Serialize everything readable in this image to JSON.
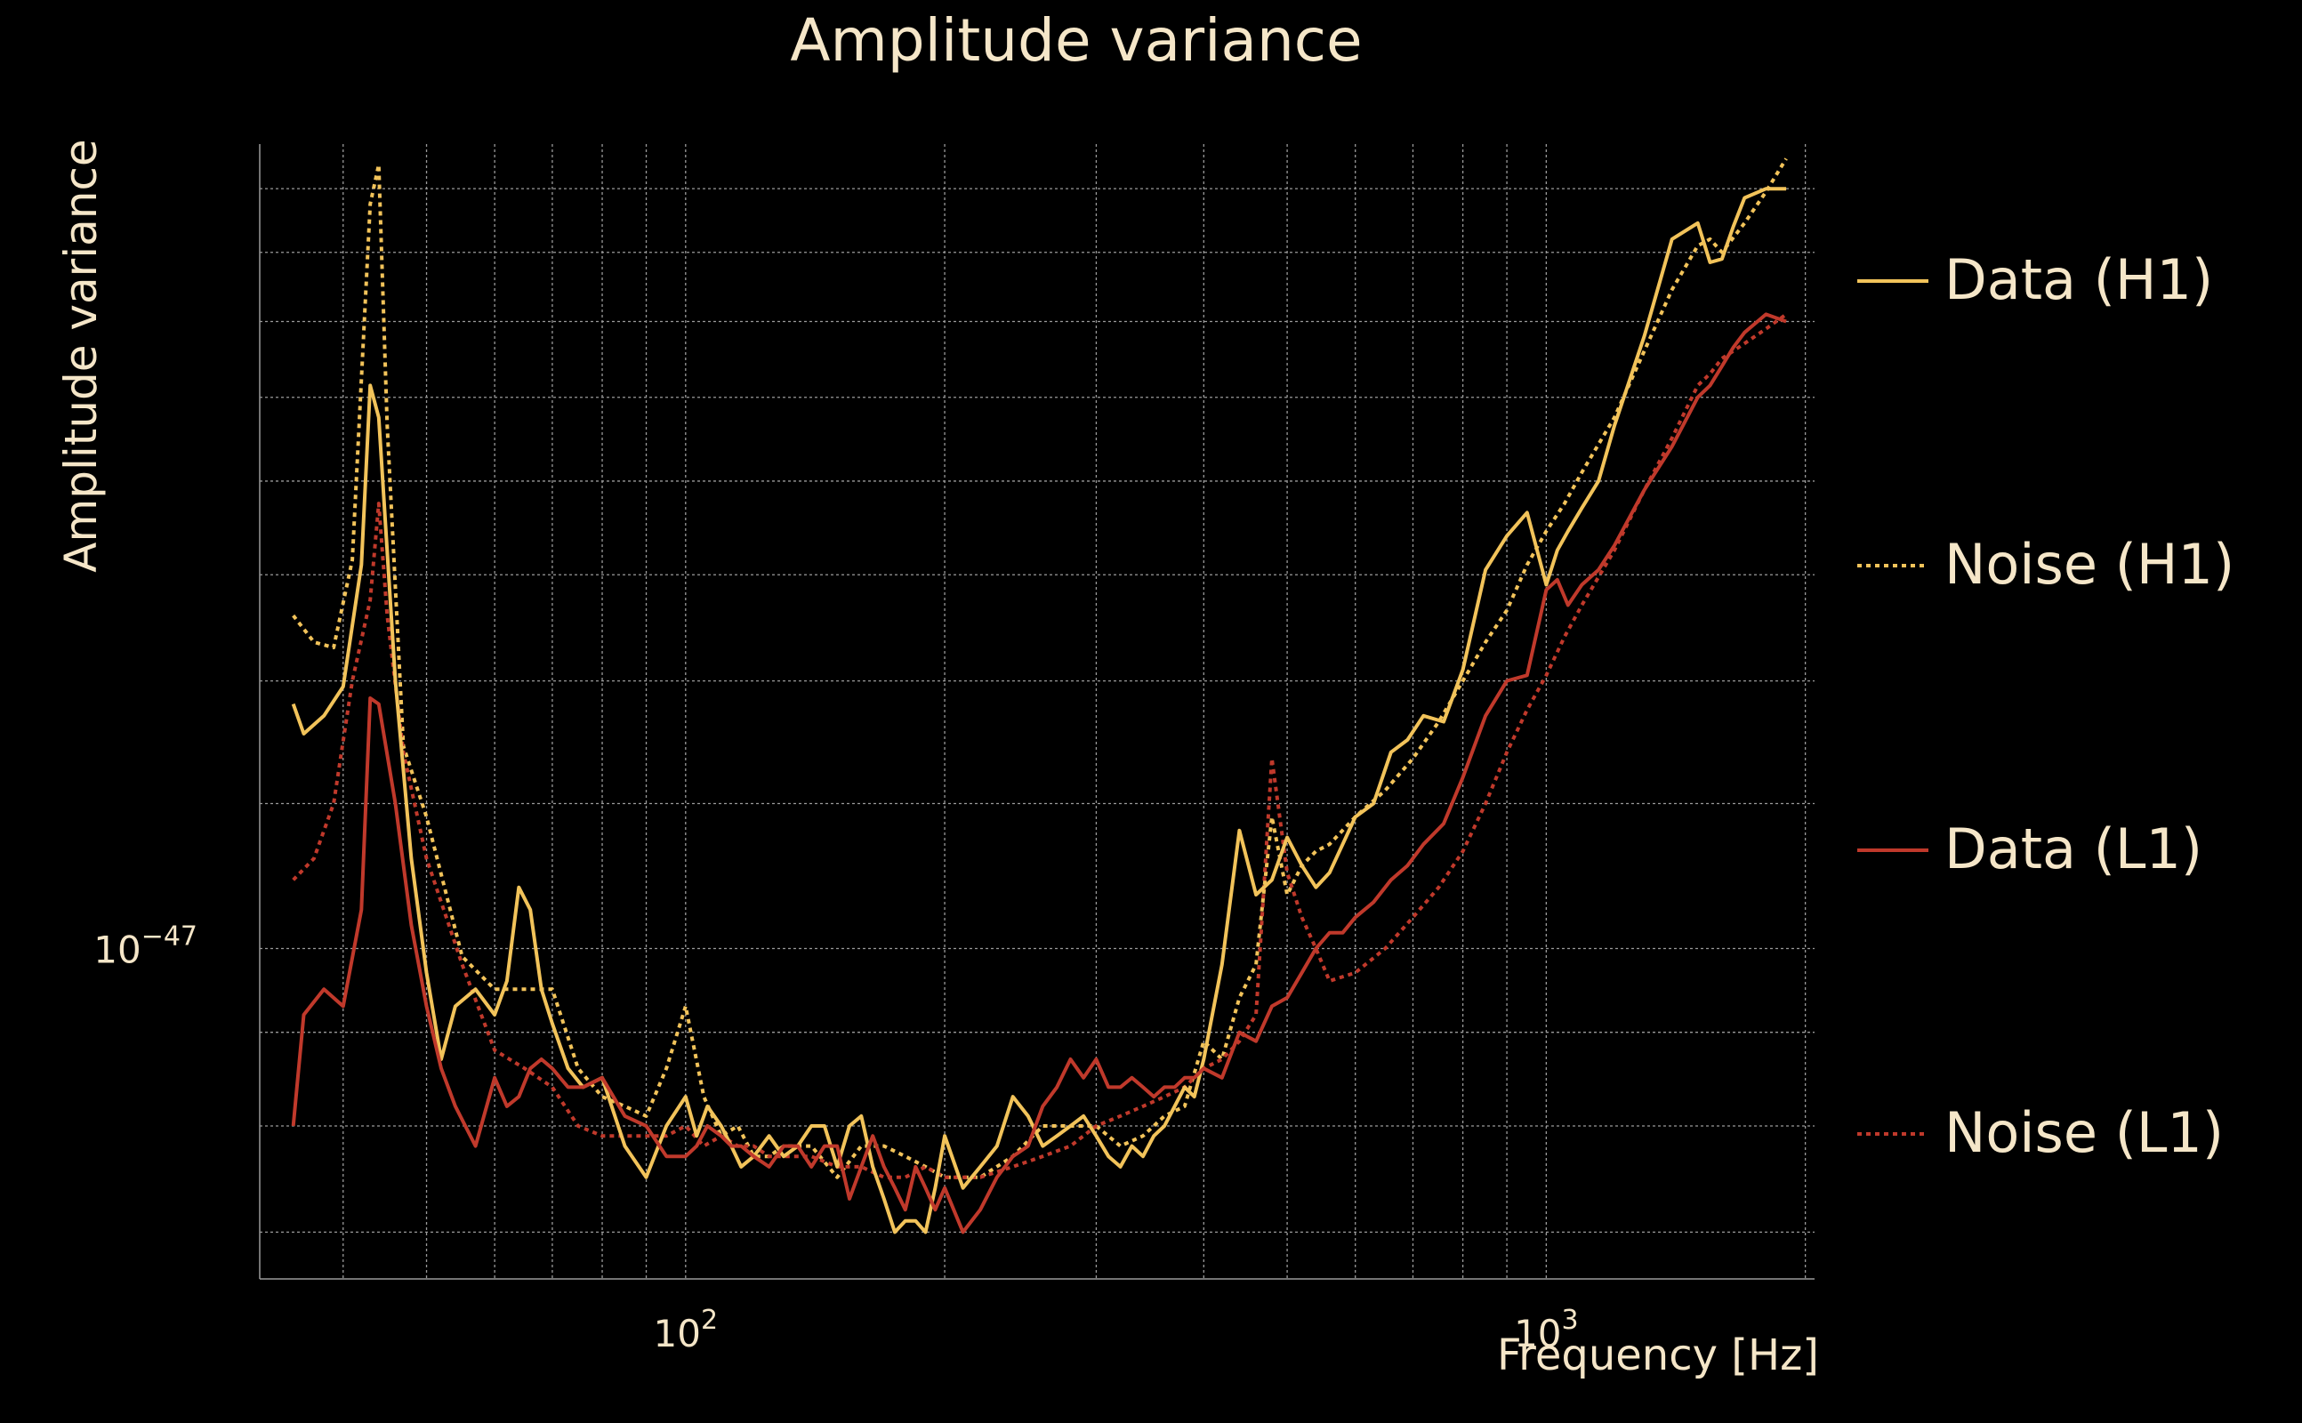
{
  "chart_data": {
    "type": "line",
    "title": "Amplitude variance",
    "xlabel": "Frequency [Hz]",
    "ylabel": "Amplitude variance",
    "xscale": "log",
    "yscale": "log",
    "xlim": [
      32,
      2050
    ],
    "ylim": [
      6.6e-48,
      2.75e-47
    ],
    "xticks": [
      {
        "value": 100,
        "label": "10",
        "exp": "2"
      },
      {
        "value": 1000,
        "label": "10",
        "exp": "3"
      }
    ],
    "yticks": [
      {
        "value": 1e-47,
        "label": "10",
        "exp": "−47"
      }
    ],
    "grid": true,
    "legend_position": "right",
    "colors": {
      "background": "#000000",
      "text": "#f5e6c8",
      "grid": "#9a9a9a",
      "h1": "#f2c35a",
      "l1": "#c0392b"
    },
    "series": [
      {
        "name": "Data (H1)",
        "color": "#f2c35a",
        "dash": "solid",
        "x": [
          35,
          36,
          38,
          40,
          42,
          43,
          44,
          46,
          48,
          50,
          52,
          54,
          57,
          60,
          62,
          64,
          66,
          68,
          70,
          73,
          76,
          80,
          85,
          90,
          95,
          100,
          103,
          106,
          110,
          113,
          116,
          120,
          125,
          130,
          135,
          140,
          145,
          150,
          155,
          160,
          165,
          170,
          175,
          180,
          185,
          190,
          195,
          200,
          210,
          220,
          230,
          240,
          250,
          260,
          270,
          280,
          290,
          300,
          310,
          320,
          330,
          340,
          350,
          360,
          370,
          380,
          390,
          400,
          420,
          440,
          460,
          480,
          500,
          520,
          540,
          560,
          580,
          600,
          630,
          660,
          690,
          720,
          760,
          800,
          850,
          900,
          950,
          1000,
          1030,
          1060,
          1100,
          1150,
          1200,
          1300,
          1400,
          1500,
          1550,
          1600,
          1650,
          1700,
          1800,
          1900
        ],
        "y": [
          1.36,
          1.31,
          1.34,
          1.39,
          1.62,
          2.03,
          1.95,
          1.4,
          1.12,
          0.97,
          0.87,
          0.93,
          0.95,
          0.92,
          0.96,
          1.08,
          1.05,
          0.95,
          0.91,
          0.86,
          0.84,
          0.85,
          0.78,
          0.75,
          0.8,
          0.83,
          0.79,
          0.82,
          0.8,
          0.78,
          0.76,
          0.77,
          0.79,
          0.77,
          0.78,
          0.8,
          0.8,
          0.76,
          0.8,
          0.81,
          0.76,
          0.73,
          0.7,
          0.71,
          0.71,
          0.7,
          0.74,
          0.79,
          0.74,
          0.76,
          0.78,
          0.83,
          0.81,
          0.78,
          0.79,
          0.8,
          0.81,
          0.79,
          0.77,
          0.76,
          0.78,
          0.77,
          0.79,
          0.8,
          0.82,
          0.84,
          0.83,
          0.87,
          0.98,
          1.16,
          1.07,
          1.09,
          1.15,
          1.11,
          1.08,
          1.1,
          1.14,
          1.18,
          1.2,
          1.28,
          1.3,
          1.34,
          1.33,
          1.42,
          1.61,
          1.68,
          1.73,
          1.58,
          1.65,
          1.69,
          1.74,
          1.8,
          1.93,
          2.16,
          2.44,
          2.49,
          2.37,
          2.38,
          2.48,
          2.57,
          2.6,
          2.6
        ]
      },
      {
        "name": "Noise (H1)",
        "color": "#f2c35a",
        "dash": "dotted",
        "x": [
          35,
          37,
          39,
          41,
          43,
          44,
          45,
          47,
          50,
          55,
          60,
          65,
          70,
          75,
          80,
          85,
          90,
          95,
          100,
          105,
          110,
          115,
          120,
          125,
          130,
          140,
          150,
          160,
          170,
          180,
          190,
          200,
          220,
          240,
          260,
          280,
          300,
          320,
          340,
          360,
          380,
          400,
          420,
          440,
          460,
          480,
          500,
          520,
          540,
          560,
          600,
          650,
          700,
          750,
          800,
          850,
          900,
          950,
          1000,
          1050,
          1100,
          1200,
          1300,
          1400,
          1500,
          1550,
          1600,
          1700,
          1800,
          1900
        ],
        "y": [
          1.52,
          1.47,
          1.46,
          1.63,
          2.55,
          2.68,
          1.93,
          1.29,
          1.18,
          0.99,
          0.95,
          0.95,
          0.95,
          0.86,
          0.83,
          0.82,
          0.81,
          0.86,
          0.93,
          0.83,
          0.79,
          0.8,
          0.77,
          0.77,
          0.78,
          0.78,
          0.75,
          0.78,
          0.78,
          0.77,
          0.76,
          0.75,
          0.75,
          0.77,
          0.8,
          0.8,
          0.8,
          0.78,
          0.79,
          0.81,
          0.82,
          0.89,
          0.87,
          0.94,
          0.98,
          1.18,
          1.07,
          1.11,
          1.13,
          1.14,
          1.18,
          1.22,
          1.27,
          1.33,
          1.4,
          1.47,
          1.53,
          1.62,
          1.69,
          1.75,
          1.82,
          1.95,
          2.12,
          2.29,
          2.42,
          2.44,
          2.4,
          2.49,
          2.59,
          2.7
        ]
      },
      {
        "name": "Data (L1)",
        "color": "#c0392b",
        "dash": "solid",
        "x": [
          35,
          36,
          38,
          40,
          42,
          43,
          44,
          46,
          48,
          50,
          52,
          54,
          57,
          60,
          62,
          64,
          66,
          68,
          70,
          73,
          76,
          80,
          85,
          90,
          95,
          100,
          103,
          106,
          110,
          113,
          116,
          120,
          125,
          130,
          135,
          140,
          145,
          150,
          155,
          160,
          165,
          170,
          175,
          180,
          185,
          190,
          195,
          200,
          210,
          220,
          230,
          240,
          250,
          260,
          270,
          280,
          290,
          300,
          310,
          320,
          330,
          340,
          350,
          360,
          370,
          380,
          390,
          400,
          420,
          440,
          460,
          480,
          500,
          520,
          540,
          560,
          580,
          600,
          630,
          660,
          690,
          720,
          760,
          800,
          850,
          900,
          950,
          1000,
          1030,
          1060,
          1100,
          1150,
          1200,
          1300,
          1400,
          1500,
          1550,
          1600,
          1650,
          1700,
          1800,
          1900
        ],
        "y": [
          0.8,
          0.92,
          0.95,
          0.93,
          1.05,
          1.37,
          1.36,
          1.2,
          1.03,
          0.93,
          0.86,
          0.82,
          0.78,
          0.85,
          0.82,
          0.83,
          0.86,
          0.87,
          0.86,
          0.84,
          0.84,
          0.85,
          0.81,
          0.8,
          0.77,
          0.77,
          0.78,
          0.8,
          0.79,
          0.78,
          0.78,
          0.77,
          0.76,
          0.78,
          0.78,
          0.76,
          0.78,
          0.78,
          0.73,
          0.76,
          0.79,
          0.76,
          0.74,
          0.72,
          0.76,
          0.74,
          0.72,
          0.74,
          0.7,
          0.72,
          0.75,
          0.77,
          0.78,
          0.82,
          0.84,
          0.87,
          0.85,
          0.87,
          0.84,
          0.84,
          0.85,
          0.84,
          0.83,
          0.84,
          0.84,
          0.85,
          0.85,
          0.86,
          0.85,
          0.9,
          0.89,
          0.93,
          0.94,
          0.97,
          1.0,
          1.02,
          1.02,
          1.04,
          1.06,
          1.09,
          1.11,
          1.14,
          1.17,
          1.24,
          1.34,
          1.4,
          1.41,
          1.57,
          1.59,
          1.54,
          1.58,
          1.61,
          1.66,
          1.78,
          1.88,
          2.0,
          2.03,
          2.08,
          2.13,
          2.17,
          2.22,
          2.2
        ]
      },
      {
        "name": "Noise (L1)",
        "color": "#c0392b",
        "dash": "dotted",
        "x": [
          35,
          37,
          39,
          41,
          43,
          44,
          45,
          47,
          50,
          55,
          60,
          65,
          70,
          75,
          80,
          85,
          90,
          95,
          100,
          105,
          110,
          115,
          120,
          125,
          130,
          140,
          150,
          160,
          170,
          180,
          190,
          200,
          220,
          240,
          260,
          280,
          300,
          320,
          340,
          360,
          380,
          400,
          420,
          440,
          460,
          480,
          500,
          520,
          540,
          560,
          600,
          650,
          700,
          750,
          800,
          850,
          900,
          950,
          1000,
          1050,
          1100,
          1200,
          1300,
          1400,
          1500,
          1550,
          1600,
          1700,
          1800,
          1900
        ],
        "y": [
          1.09,
          1.12,
          1.2,
          1.4,
          1.55,
          1.75,
          1.52,
          1.28,
          1.12,
          0.98,
          0.88,
          0.86,
          0.84,
          0.8,
          0.79,
          0.79,
          0.79,
          0.79,
          0.8,
          0.78,
          0.79,
          0.78,
          0.78,
          0.77,
          0.77,
          0.77,
          0.76,
          0.76,
          0.75,
          0.75,
          0.76,
          0.75,
          0.75,
          0.76,
          0.77,
          0.78,
          0.8,
          0.81,
          0.82,
          0.83,
          0.84,
          0.86,
          0.87,
          0.89,
          0.92,
          1.27,
          1.1,
          1.04,
          1.0,
          0.96,
          0.97,
          1.0,
          1.04,
          1.08,
          1.13,
          1.2,
          1.28,
          1.35,
          1.41,
          1.48,
          1.54,
          1.65,
          1.78,
          1.9,
          2.03,
          2.06,
          2.1,
          2.14,
          2.18,
          2.22
        ]
      }
    ]
  }
}
